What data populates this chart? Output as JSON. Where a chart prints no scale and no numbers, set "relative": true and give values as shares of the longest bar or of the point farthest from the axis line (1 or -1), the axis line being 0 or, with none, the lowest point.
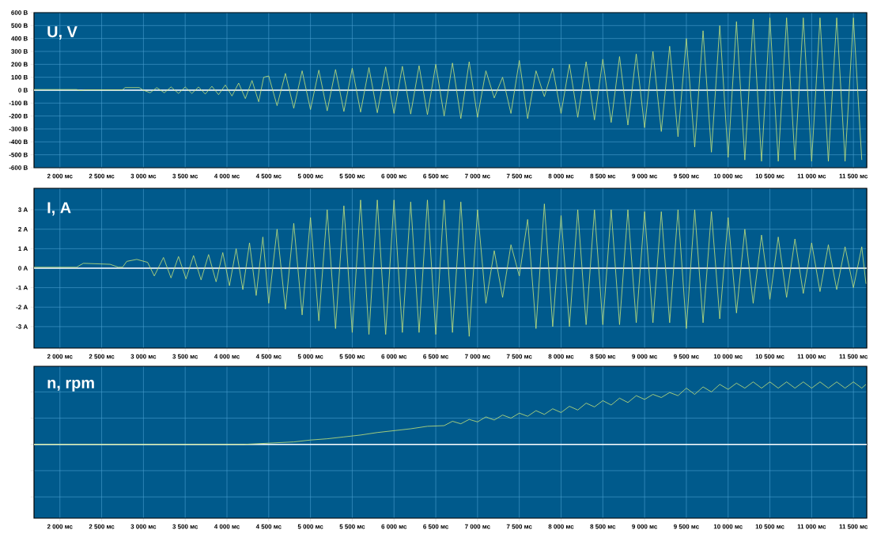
{
  "chart_data": [
    {
      "type": "line",
      "title": "U, V",
      "grid": true,
      "xlim": [
        1690,
        11660
      ],
      "xticks": [
        {
          "value": 2000,
          "label": "2 000 мс"
        },
        {
          "value": 2500,
          "label": "2 500 мс"
        },
        {
          "value": 3000,
          "label": "3 000 мс"
        },
        {
          "value": 3500,
          "label": "3 500 мс"
        },
        {
          "value": 4000,
          "label": "4 000 мс"
        },
        {
          "value": 4500,
          "label": "4 500 мс"
        },
        {
          "value": 5000,
          "label": "5 000 мс"
        },
        {
          "value": 5500,
          "label": "5 500 мс"
        },
        {
          "value": 6000,
          "label": "6 000 мс"
        },
        {
          "value": 6500,
          "label": "6 500 мс"
        },
        {
          "value": 7000,
          "label": "7 000 мс"
        },
        {
          "value": 7500,
          "label": "7 500 мс"
        },
        {
          "value": 8000,
          "label": "8 000 мс"
        },
        {
          "value": 8500,
          "label": "8 500 мс"
        },
        {
          "value": 9000,
          "label": "9 000 мс"
        },
        {
          "value": 9500,
          "label": "9 500 мс"
        },
        {
          "value": 10000,
          "label": "10 000 мс"
        },
        {
          "value": 10500,
          "label": "10 500 мс"
        },
        {
          "value": 11000,
          "label": "11 000 мс"
        },
        {
          "value": 11500,
          "label": "11 500 мс"
        }
      ],
      "ylim": [
        -600,
        600
      ],
      "yticks": [
        {
          "value": -600,
          "label": "-600 В"
        },
        {
          "value": -500,
          "label": "-500 В"
        },
        {
          "value": -400,
          "label": "-400 В"
        },
        {
          "value": -300,
          "label": "-300 В"
        },
        {
          "value": -200,
          "label": "-200 В"
        },
        {
          "value": -100,
          "label": "-100 В"
        },
        {
          "value": 0,
          "label": "0 В"
        },
        {
          "value": 100,
          "label": "100 В"
        },
        {
          "value": 200,
          "label": "200 В"
        },
        {
          "value": 300,
          "label": "300 В"
        },
        {
          "value": 400,
          "label": "400 В"
        },
        {
          "value": 500,
          "label": "500 В"
        },
        {
          "value": 600,
          "label": "600 В"
        }
      ],
      "ref_lines": [
        {
          "axis": "y",
          "value": 0,
          "color": "#ffffff"
        }
      ],
      "series": [
        {
          "color": "#c8e67a",
          "x": [
            1690,
            2200,
            2250,
            2300,
            2750,
            2780,
            2950,
            3000,
            3080,
            3160,
            3250,
            3330,
            3420,
            3500,
            3580,
            3660,
            3740,
            3820,
            3900,
            3980,
            4060,
            4140,
            4220,
            4300,
            4380,
            4440,
            4500,
            4600,
            4700,
            4800,
            4900,
            5000,
            5100,
            5200,
            5300,
            5400,
            5500,
            5600,
            5700,
            5800,
            5900,
            6000,
            6100,
            6200,
            6300,
            6400,
            6500,
            6600,
            6700,
            6800,
            6900,
            7000,
            7100,
            7200,
            7300,
            7400,
            7500,
            7600,
            7700,
            7800,
            7900,
            8000,
            8100,
            8200,
            8300,
            8400,
            8500,
            8600,
            8700,
            8800,
            8900,
            9000,
            9100,
            9200,
            9300,
            9400,
            9500,
            9600,
            9700,
            9800,
            9900,
            10000,
            10100,
            10200,
            10300,
            10400,
            10500,
            10600,
            10700,
            10800,
            10900,
            11000,
            11100,
            11200,
            11300,
            11400,
            11500,
            11600
          ],
          "values": [
            5,
            5,
            -3,
            3,
            3,
            20,
            20,
            0,
            -20,
            20,
            -20,
            25,
            -25,
            25,
            -25,
            25,
            -30,
            30,
            -35,
            40,
            -45,
            55,
            -65,
            75,
            -90,
            100,
            110,
            -120,
            130,
            -140,
            150,
            -150,
            155,
            -160,
            160,
            -165,
            170,
            -170,
            175,
            -175,
            180,
            -180,
            185,
            -185,
            190,
            -190,
            200,
            -200,
            210,
            -220,
            220,
            -210,
            150,
            -60,
            100,
            -180,
            230,
            -220,
            150,
            -50,
            170,
            -180,
            200,
            -210,
            220,
            -230,
            240,
            -250,
            260,
            -270,
            280,
            -290,
            300,
            -320,
            340,
            -360,
            400,
            -440,
            460,
            -480,
            500,
            -520,
            530,
            -540,
            550,
            -550,
            560,
            -550,
            560,
            -540,
            560,
            -550,
            560,
            -550,
            560,
            -550,
            560,
            -540
          ]
        }
      ]
    },
    {
      "type": "line",
      "title": "I, A",
      "grid": true,
      "xlim": [
        1690,
        11660
      ],
      "xticks": [
        {
          "value": 2000,
          "label": "2 000 мс"
        },
        {
          "value": 2500,
          "label": "2 500 мс"
        },
        {
          "value": 3000,
          "label": "3 000 мс"
        },
        {
          "value": 3500,
          "label": "3 500 мс"
        },
        {
          "value": 4000,
          "label": "4 000 мс"
        },
        {
          "value": 4500,
          "label": "4 500 мс"
        },
        {
          "value": 5000,
          "label": "5 000 мс"
        },
        {
          "value": 5500,
          "label": "5 500 мс"
        },
        {
          "value": 6000,
          "label": "6 000 мс"
        },
        {
          "value": 6500,
          "label": "6 500 мс"
        },
        {
          "value": 7000,
          "label": "7 000 мс"
        },
        {
          "value": 7500,
          "label": "7 500 мс"
        },
        {
          "value": 8000,
          "label": "8 000 мс"
        },
        {
          "value": 8500,
          "label": "8 500 мс"
        },
        {
          "value": 9000,
          "label": "9 000 мс"
        },
        {
          "value": 9500,
          "label": "9 500 мс"
        },
        {
          "value": 10000,
          "label": "10 000 мс"
        },
        {
          "value": 10500,
          "label": "10 500 мс"
        },
        {
          "value": 11000,
          "label": "11 000 мс"
        },
        {
          "value": 11500,
          "label": "11 500 мс"
        }
      ],
      "ylim": [
        -4.1,
        4.1
      ],
      "yticks": [
        {
          "value": -3,
          "label": "-3 А"
        },
        {
          "value": -2,
          "label": "-2 А"
        },
        {
          "value": -1,
          "label": "-1 А"
        },
        {
          "value": 0,
          "label": "0 А"
        },
        {
          "value": 1,
          "label": "1 А"
        },
        {
          "value": 2,
          "label": "2 А"
        },
        {
          "value": 3,
          "label": "3 А"
        }
      ],
      "ref_lines": [
        {
          "axis": "y",
          "value": 0,
          "color": "#ffffff"
        }
      ],
      "series": [
        {
          "color": "#c8e67a",
          "x": [
            1690,
            2200,
            2280,
            2600,
            2700,
            2750,
            2800,
            2920,
            3050,
            3130,
            3240,
            3330,
            3420,
            3510,
            3600,
            3690,
            3780,
            3870,
            3950,
            4030,
            4110,
            4190,
            4270,
            4350,
            4430,
            4500,
            4600,
            4700,
            4800,
            4900,
            5000,
            5100,
            5200,
            5300,
            5400,
            5500,
            5600,
            5700,
            5800,
            5900,
            6000,
            6100,
            6200,
            6300,
            6400,
            6500,
            6600,
            6700,
            6800,
            6900,
            7000,
            7100,
            7200,
            7300,
            7400,
            7500,
            7600,
            7700,
            7800,
            7900,
            8000,
            8100,
            8200,
            8300,
            8400,
            8500,
            8600,
            8700,
            8800,
            8900,
            9000,
            9100,
            9200,
            9300,
            9400,
            9500,
            9600,
            9700,
            9800,
            9900,
            10000,
            10100,
            10200,
            10300,
            10400,
            10500,
            10600,
            10700,
            10800,
            10900,
            11000,
            11100,
            11200,
            11300,
            11400,
            11500,
            11600,
            11650
          ],
          "values": [
            0.05,
            0.05,
            0.25,
            0.2,
            0.05,
            0.05,
            0.35,
            0.45,
            0.3,
            -0.4,
            0.55,
            -0.5,
            0.6,
            -0.55,
            0.65,
            -0.6,
            0.7,
            -0.7,
            0.8,
            -0.9,
            1.0,
            -1.1,
            1.3,
            -1.4,
            1.6,
            -1.8,
            2.0,
            -2.1,
            2.3,
            -2.4,
            2.6,
            -2.7,
            3.0,
            -3.1,
            3.2,
            -3.3,
            3.5,
            -3.4,
            3.5,
            -3.4,
            3.5,
            -3.3,
            3.4,
            -3.3,
            3.5,
            -3.4,
            3.5,
            -3.3,
            3.4,
            -3.5,
            3.0,
            -1.8,
            0.9,
            -1.5,
            1.2,
            -0.4,
            2.5,
            -3.1,
            3.3,
            -3.0,
            2.7,
            -3.0,
            3.0,
            -2.9,
            3.0,
            -2.9,
            3.0,
            -2.9,
            3.0,
            -2.8,
            2.9,
            -2.8,
            2.9,
            -2.8,
            3.0,
            -3.1,
            3.0,
            -2.8,
            2.9,
            -2.6,
            2.6,
            -2.3,
            2.0,
            -1.8,
            1.7,
            -1.6,
            1.6,
            -1.5,
            1.5,
            -1.3,
            1.3,
            -1.2,
            1.2,
            -1.1,
            1.1,
            -1.0,
            1.1,
            -0.8
          ]
        }
      ]
    },
    {
      "type": "line",
      "title": "n, rpm",
      "grid": true,
      "relative": true,
      "xlim": [
        1690,
        11660
      ],
      "xticks": [
        {
          "value": 2000,
          "label": "2 000 мс"
        },
        {
          "value": 2500,
          "label": "2 500 мс"
        },
        {
          "value": 3000,
          "label": "3 000 мс"
        },
        {
          "value": 3500,
          "label": "3 500 мс"
        },
        {
          "value": 4000,
          "label": "4 000 мс"
        },
        {
          "value": 4500,
          "label": "4 500 мс"
        },
        {
          "value": 5000,
          "label": "5 000 мс"
        },
        {
          "value": 5500,
          "label": "5 500 мс"
        },
        {
          "value": 6000,
          "label": "6 000 мс"
        },
        {
          "value": 6500,
          "label": "6 500 мс"
        },
        {
          "value": 7000,
          "label": "7 000 мс"
        },
        {
          "value": 7500,
          "label": "7 500 мс"
        },
        {
          "value": 8000,
          "label": "8 000 мс"
        },
        {
          "value": 8500,
          "label": "8 500 мс"
        },
        {
          "value": 9000,
          "label": "9 000 мс"
        },
        {
          "value": 9500,
          "label": "9 500 мс"
        },
        {
          "value": 10000,
          "label": "10 000 мс"
        },
        {
          "value": 10500,
          "label": "10 500 мс"
        },
        {
          "value": 11000,
          "label": "11 000 мс"
        },
        {
          "value": 11500,
          "label": "11 500 мс"
        }
      ],
      "ref_lines": [
        {
          "axis": "y",
          "value": 0,
          "color": "#ffffff"
        }
      ],
      "series": [
        {
          "color": "#c8e67a",
          "x": [
            1690,
            4200,
            4500,
            4800,
            5000,
            5200,
            5400,
            5600,
            5800,
            6000,
            6200,
            6400,
            6600,
            6700,
            6800,
            6900,
            7000,
            7100,
            7200,
            7300,
            7400,
            7500,
            7600,
            7700,
            7800,
            7900,
            8000,
            8100,
            8200,
            8300,
            8400,
            8500,
            8600,
            8700,
            8800,
            8900,
            9000,
            9100,
            9200,
            9300,
            9400,
            9500,
            9600,
            9700,
            9800,
            9900,
            10000,
            10100,
            10200,
            10300,
            10400,
            10500,
            10600,
            10700,
            10800,
            10900,
            11000,
            11100,
            11200,
            11300,
            11400,
            11500,
            11600,
            11650
          ],
          "values": [
            0,
            0,
            0.02,
            0.04,
            0.07,
            0.09,
            0.12,
            0.15,
            0.19,
            0.22,
            0.25,
            0.29,
            0.3,
            0.37,
            0.33,
            0.4,
            0.36,
            0.44,
            0.39,
            0.47,
            0.42,
            0.5,
            0.45,
            0.54,
            0.48,
            0.57,
            0.51,
            0.61,
            0.55,
            0.66,
            0.6,
            0.7,
            0.63,
            0.74,
            0.67,
            0.78,
            0.72,
            0.8,
            0.75,
            0.83,
            0.78,
            0.9,
            0.8,
            0.92,
            0.84,
            0.96,
            0.88,
            0.98,
            0.9,
            1.0,
            0.9,
            1.0,
            0.9,
            1.0,
            0.9,
            1.0,
            0.9,
            1.0,
            0.9,
            1.0,
            0.9,
            1.0,
            0.9,
            0.96
          ]
        }
      ]
    }
  ]
}
